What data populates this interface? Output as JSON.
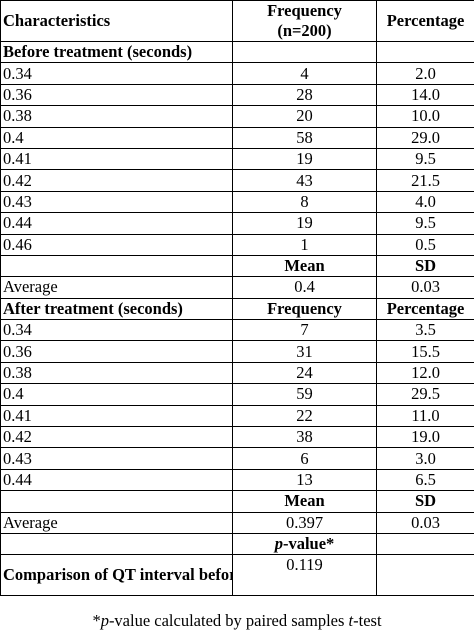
{
  "header": {
    "characteristics": "Characteristics",
    "frequency_line1": "Frequency",
    "frequency_line2": "(n=200)",
    "percentage": "Percentage"
  },
  "before": {
    "title": "Before treatment (seconds)",
    "rows": [
      {
        "value": "0.34",
        "frequency": "4",
        "percentage": "2.0"
      },
      {
        "value": "0.36",
        "frequency": "28",
        "percentage": "14.0"
      },
      {
        "value": "0.38",
        "frequency": "20",
        "percentage": "10.0"
      },
      {
        "value": "0.4",
        "frequency": "58",
        "percentage": "29.0"
      },
      {
        "value": "0.41",
        "frequency": "19",
        "percentage": "9.5"
      },
      {
        "value": "0.42",
        "frequency": "43",
        "percentage": "21.5"
      },
      {
        "value": "0.43",
        "frequency": "8",
        "percentage": "4.0"
      },
      {
        "value": "0.44",
        "frequency": "19",
        "percentage": "9.5"
      },
      {
        "value": "0.46",
        "frequency": "1",
        "percentage": "0.5"
      }
    ],
    "mean_label": "Mean",
    "sd_label": "SD",
    "average_label": "Average",
    "mean": "0.4",
    "sd": "0.03"
  },
  "after": {
    "title": "After treatment (seconds)",
    "frequency_label": "Frequency",
    "percentage_label": "Percentage",
    "rows": [
      {
        "value": "0.34",
        "frequency": "7",
        "percentage": "3.5"
      },
      {
        "value": "0.36",
        "frequency": "31",
        "percentage": "15.5"
      },
      {
        "value": "0.38",
        "frequency": "24",
        "percentage": "12.0"
      },
      {
        "value": "0.4",
        "frequency": "59",
        "percentage": "29.5"
      },
      {
        "value": "0.41",
        "frequency": "22",
        "percentage": "11.0"
      },
      {
        "value": "0.42",
        "frequency": "38",
        "percentage": "19.0"
      },
      {
        "value": "0.43",
        "frequency": "6",
        "percentage": "3.0"
      },
      {
        "value": "0.44",
        "frequency": "13",
        "percentage": "6.5"
      }
    ],
    "mean_label": "Mean",
    "sd_label": "SD",
    "average_label": "Average",
    "mean": "0.397",
    "sd": "0.03"
  },
  "pvalue": {
    "label_italic": "p",
    "label_rest": "-value*",
    "comparison_label": "Comparison of QT interval before and after treatment",
    "value": "0.119"
  },
  "footnote": {
    "star": "*",
    "p": "p",
    "middle": "-value calculated by paired samples ",
    "t": "t",
    "end": "-test"
  }
}
